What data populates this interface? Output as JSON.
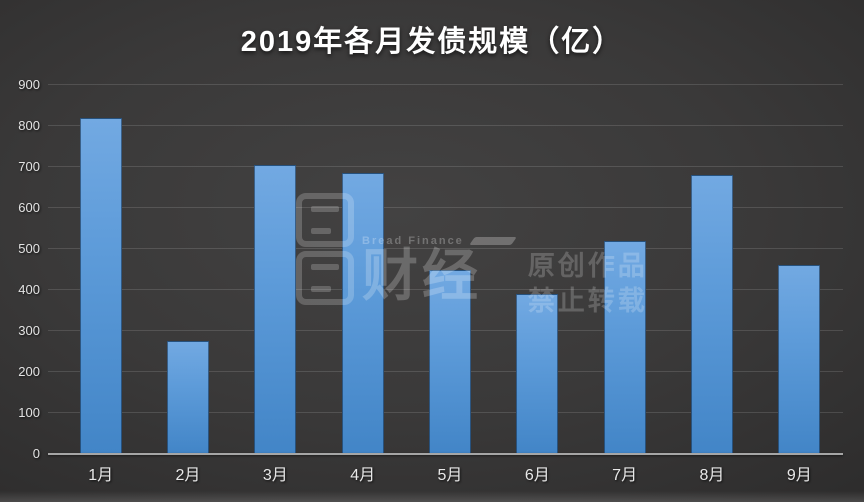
{
  "title": "2019年各月发债规模（亿）",
  "watermark": {
    "brand_en": "Bread Finance",
    "brand_cn": "财经",
    "notice_line1": "原创作品",
    "notice_line2": "禁止转载"
  },
  "chart_data": {
    "type": "bar",
    "title": "2019年各月发债规模（亿）",
    "categories": [
      "1月",
      "2月",
      "3月",
      "4月",
      "5月",
      "6月",
      "7月",
      "8月",
      "9月"
    ],
    "values": [
      820,
      275,
      705,
      685,
      450,
      390,
      520,
      680,
      460
    ],
    "xlabel": "",
    "ylabel": "",
    "ylim": [
      0,
      900
    ],
    "ytick_step": 100,
    "yticks": [
      0,
      100,
      200,
      300,
      400,
      500,
      600,
      700,
      800,
      900
    ],
    "grid": true,
    "legend": "none",
    "bar_color_top": "#72a9e2",
    "bar_color_bottom": "#4285c7",
    "background_color": "#323131",
    "gridline_color": "rgba(255,255,255,0.13)",
    "axis_line_color": "#a6a6a6",
    "label_color": "#e8e8e8",
    "title_color": "#ffffff"
  }
}
